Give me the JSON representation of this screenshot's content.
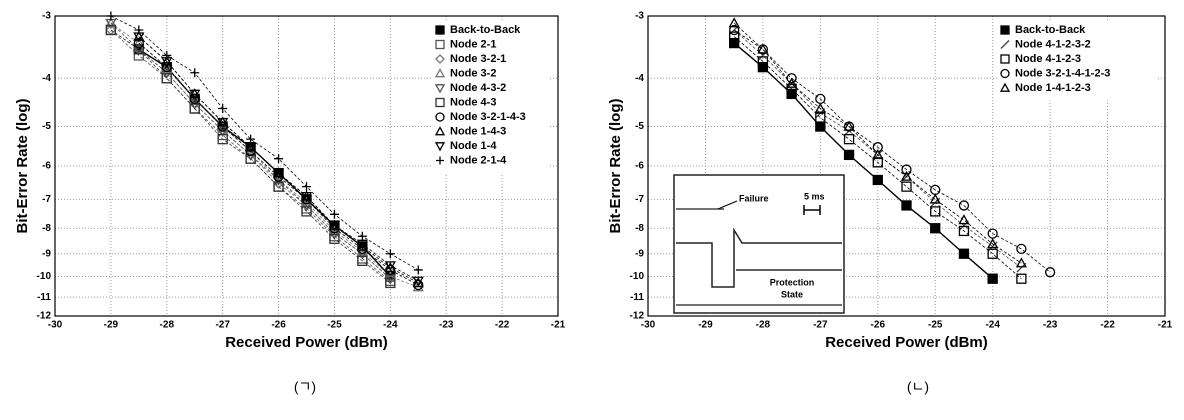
{
  "chart_data": [
    {
      "type": "scatter",
      "caption": "(ㄱ)",
      "x_label": "Received Power (dBm)",
      "y_label": "Bit-Error Rate (log)",
      "x": [
        -29,
        -28.5,
        -28,
        -27.5,
        -27,
        -26.5,
        -26,
        -25.5,
        -25,
        -24.5,
        -24,
        -23.5
      ],
      "xlim": [
        -30,
        -21
      ],
      "xticks": [
        -30,
        -29,
        -28,
        -27,
        -26,
        -25,
        -24,
        -23,
        -22,
        -21
      ],
      "ylim": [
        -3,
        -12
      ],
      "yticks": [
        -3,
        -4,
        -5,
        -6,
        -7,
        -8,
        -9,
        -10,
        -11,
        -12
      ],
      "log_scale": true,
      "grid": true,
      "legend": "top-right",
      "series": [
        {
          "name": "Back-to-Back",
          "color": "#000000",
          "marker": "square-filled",
          "values": [
            null,
            -3.5,
            -3.8,
            -4.4,
            -5.0,
            -5.5,
            -6.2,
            -7.0,
            -7.9,
            -8.7,
            -10.0,
            null
          ]
        },
        {
          "name": "Node 2-1",
          "color": "#555555",
          "marker": "square",
          "values": [
            -3.2,
            -3.6,
            -4.0,
            -4.6,
            -5.2,
            -5.8,
            -6.6,
            -7.3,
            -8.3,
            -9.2,
            -10.2,
            null
          ]
        },
        {
          "name": "Node 3-2-1",
          "color": "#777777",
          "marker": "diamond",
          "values": [
            -3.2,
            -3.5,
            -3.9,
            -4.5,
            -5.1,
            -5.7,
            -6.5,
            -7.2,
            -8.2,
            -9.0,
            -10.1,
            null
          ]
        },
        {
          "name": "Node 3-2",
          "color": "#777777",
          "marker": "triangle",
          "values": [
            -3.1,
            -3.4,
            -3.8,
            -4.4,
            -5.0,
            -5.6,
            -6.4,
            -7.1,
            -8.1,
            -8.9,
            -10.0,
            -10.5
          ]
        },
        {
          "name": "Node 4-3-2",
          "color": "#555555",
          "marker": "triangle-down",
          "values": [
            -3.1,
            -3.5,
            -3.9,
            -4.5,
            -5.1,
            -5.7,
            -6.4,
            -7.2,
            -8.2,
            -9.0,
            -10.1,
            null
          ]
        },
        {
          "name": "Node 4-3",
          "color": "#333333",
          "marker": "square",
          "values": [
            -3.2,
            -3.5,
            -4.0,
            -4.6,
            -5.3,
            -5.8,
            -6.6,
            -7.4,
            -8.4,
            -9.3,
            -10.3,
            null
          ]
        },
        {
          "name": "Node 3-2-1-4-3",
          "color": "#000000",
          "marker": "circle",
          "values": [
            null,
            -3.4,
            -3.8,
            -4.4,
            -5.0,
            -5.6,
            -6.3,
            -7.0,
            -8.0,
            -8.8,
            -9.7,
            -10.4
          ]
        },
        {
          "name": "Node 1-4-3",
          "color": "#000000",
          "marker": "triangle",
          "values": [
            null,
            -3.3,
            -3.7,
            -4.3,
            -4.9,
            -5.5,
            -6.2,
            -6.9,
            -7.9,
            -8.7,
            -9.6,
            -10.3
          ]
        },
        {
          "name": "Node 1-4",
          "color": "#000000",
          "marker": "triangle-down",
          "values": [
            null,
            -3.3,
            -3.7,
            -4.3,
            -4.9,
            -5.5,
            -6.2,
            -6.9,
            -7.9,
            -8.6,
            -9.5,
            -10.2
          ]
        },
        {
          "name": "Node 2-1-4",
          "color": "#000000",
          "marker": "plus",
          "values": [
            -3.0,
            -3.2,
            -3.6,
            -3.9,
            -4.6,
            -5.3,
            -5.8,
            -6.6,
            -7.5,
            -8.3,
            -9.0,
            -9.7
          ]
        }
      ]
    },
    {
      "type": "scatter",
      "caption": "(ㄴ)",
      "x_label": "Received Power (dBm)",
      "y_label": "Bit-Error Rate (log)",
      "x": [
        -29,
        -28.5,
        -28,
        -27.5,
        -27,
        -26.5,
        -26,
        -25.5,
        -25,
        -24.5,
        -24,
        -23.5,
        -23
      ],
      "xlim": [
        -30,
        -21
      ],
      "xticks": [
        -30,
        -29,
        -28,
        -27,
        -26,
        -25,
        -24,
        -23,
        -22,
        -21
      ],
      "ylim": [
        -3,
        -12
      ],
      "yticks": [
        -3,
        -4,
        -5,
        -6,
        -7,
        -8,
        -9,
        -10,
        -11,
        -12
      ],
      "log_scale": true,
      "grid": true,
      "legend": "top-right",
      "annotations": [
        "Failure",
        "5 ms",
        "Protection",
        "State"
      ],
      "series": [
        {
          "name": "Back-to-Back",
          "color": "#000000",
          "marker": "square-filled",
          "values": [
            null,
            -3.4,
            -3.8,
            -4.3,
            -5.0,
            -5.7,
            -6.4,
            -7.2,
            -8.0,
            -9.0,
            -10.1,
            null,
            null
          ]
        },
        {
          "name": "Node 4-1-2-3-2",
          "color": "#444444",
          "marker": "slash",
          "values": [
            null,
            -3.2,
            -3.6,
            -4.1,
            -4.7,
            -5.1,
            -5.7,
            -6.3,
            -7.1,
            -7.9,
            -8.7,
            -9.6,
            null
          ]
        },
        {
          "name": "Node 4-1-2-3",
          "color": "#000000",
          "marker": "square",
          "values": [
            null,
            -3.3,
            -3.7,
            -4.2,
            -4.8,
            -5.3,
            -5.9,
            -6.6,
            -7.4,
            -8.1,
            -9.0,
            -10.1,
            null
          ]
        },
        {
          "name": "Node 3-2-1-4-1-2-3",
          "color": "#000000",
          "marker": "circle",
          "values": [
            null,
            -3.2,
            -3.5,
            -4.0,
            -4.4,
            -5.0,
            -5.5,
            -6.1,
            -6.7,
            -7.2,
            -8.2,
            -8.8,
            -9.8
          ]
        },
        {
          "name": "Node 1-4-1-2-3",
          "color": "#000000",
          "marker": "triangle",
          "values": [
            null,
            -3.1,
            -3.5,
            -4.1,
            -4.6,
            -5.0,
            -5.7,
            -6.3,
            -7.0,
            -7.7,
            -8.6,
            -9.4,
            null
          ]
        }
      ]
    }
  ]
}
